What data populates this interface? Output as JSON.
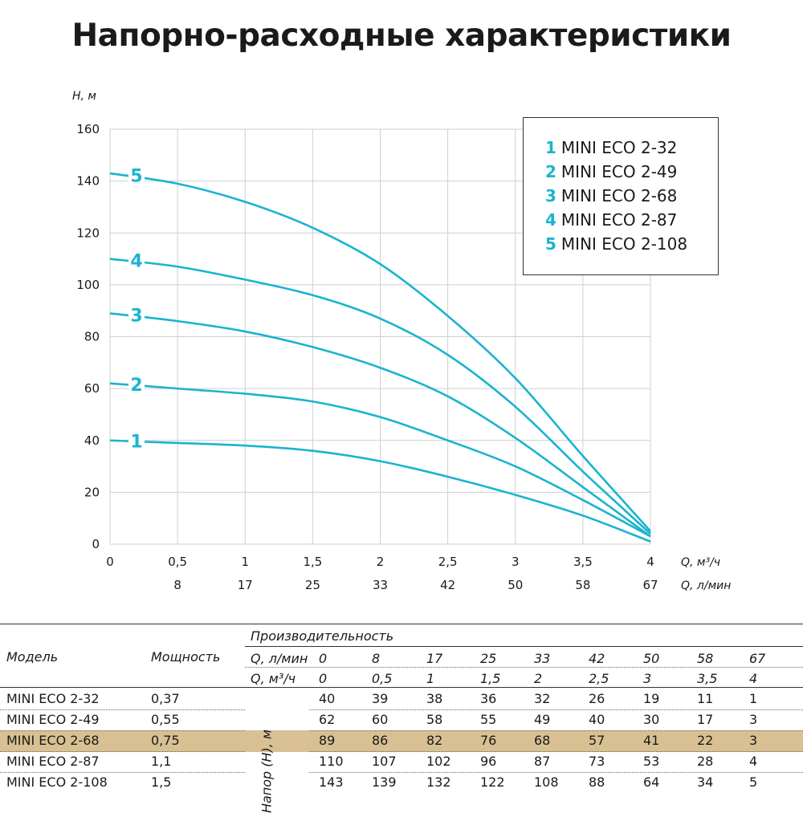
{
  "title": "Напорно-расходные характеристики",
  "chart_data": {
    "type": "line",
    "ylabel": "H, м",
    "xlabel": "Q, м³/ч",
    "xlabel2": "Q, л/мин",
    "x": [
      0,
      0.5,
      1,
      1.5,
      2,
      2.5,
      3,
      3.5,
      4
    ],
    "x_ticks": [
      "0",
      "0,5",
      "1",
      "1,5",
      "2",
      "2,5",
      "3",
      "3,5",
      "4"
    ],
    "x2_ticks": [
      "8",
      "17",
      "25",
      "33",
      "42",
      "50",
      "58",
      "67"
    ],
    "y_ticks": [
      "0",
      "20",
      "40",
      "60",
      "80",
      "100",
      "120",
      "140",
      "160"
    ],
    "xlim": [
      0,
      4
    ],
    "ylim": [
      0,
      160
    ],
    "grid": true,
    "legend_position": "top-right",
    "series": [
      {
        "id": "1",
        "name": "MINI ECO 2-32",
        "values": [
          40,
          39,
          38,
          36,
          32,
          26,
          19,
          11,
          1
        ]
      },
      {
        "id": "2",
        "name": "MINI ECO 2-49",
        "values": [
          62,
          60,
          58,
          55,
          49,
          40,
          30,
          17,
          3
        ]
      },
      {
        "id": "3",
        "name": "MINI ECO 2-68",
        "values": [
          89,
          86,
          82,
          76,
          68,
          57,
          41,
          22,
          3
        ]
      },
      {
        "id": "4",
        "name": "MINI ECO 2-87",
        "values": [
          110,
          107,
          102,
          96,
          87,
          73,
          53,
          28,
          4
        ]
      },
      {
        "id": "5",
        "name": "MINI ECO 2-108",
        "values": [
          143,
          139,
          132,
          122,
          108,
          88,
          64,
          34,
          5
        ]
      }
    ],
    "line_color": "#1ab4cf"
  },
  "table": {
    "header_group": "Производительность",
    "col_model": "Модель",
    "col_power": "Мощность",
    "row_q_lmin_label": "Q, л/мин",
    "row_q_m3h_label": "Q, м³/ч",
    "q_lmin": [
      "0",
      "8",
      "17",
      "25",
      "33",
      "42",
      "50",
      "58",
      "67"
    ],
    "q_m3h": [
      "0",
      "0,5",
      "1",
      "1,5",
      "2",
      "2,5",
      "3",
      "3,5",
      "4"
    ],
    "head_label": "Напор (H), м",
    "highlight_color": "#d8c092",
    "rows": [
      {
        "model": "MINI ECO 2-32",
        "power": "0,37",
        "values": [
          "40",
          "39",
          "38",
          "36",
          "32",
          "26",
          "19",
          "11",
          "1"
        ]
      },
      {
        "model": "MINI ECO 2-49",
        "power": "0,55",
        "values": [
          "62",
          "60",
          "58",
          "55",
          "49",
          "40",
          "30",
          "17",
          "3"
        ]
      },
      {
        "model": "MINI ECO 2-68",
        "power": "0,75",
        "values": [
          "89",
          "86",
          "82",
          "76",
          "68",
          "57",
          "41",
          "22",
          "3"
        ],
        "highlighted": true
      },
      {
        "model": "MINI ECO 2-87",
        "power": "1,1",
        "values": [
          "110",
          "107",
          "102",
          "96",
          "87",
          "73",
          "53",
          "28",
          "4"
        ]
      },
      {
        "model": "MINI ECO 2-108",
        "power": "1,5",
        "values": [
          "143",
          "139",
          "132",
          "122",
          "108",
          "88",
          "64",
          "34",
          "5"
        ]
      }
    ]
  }
}
